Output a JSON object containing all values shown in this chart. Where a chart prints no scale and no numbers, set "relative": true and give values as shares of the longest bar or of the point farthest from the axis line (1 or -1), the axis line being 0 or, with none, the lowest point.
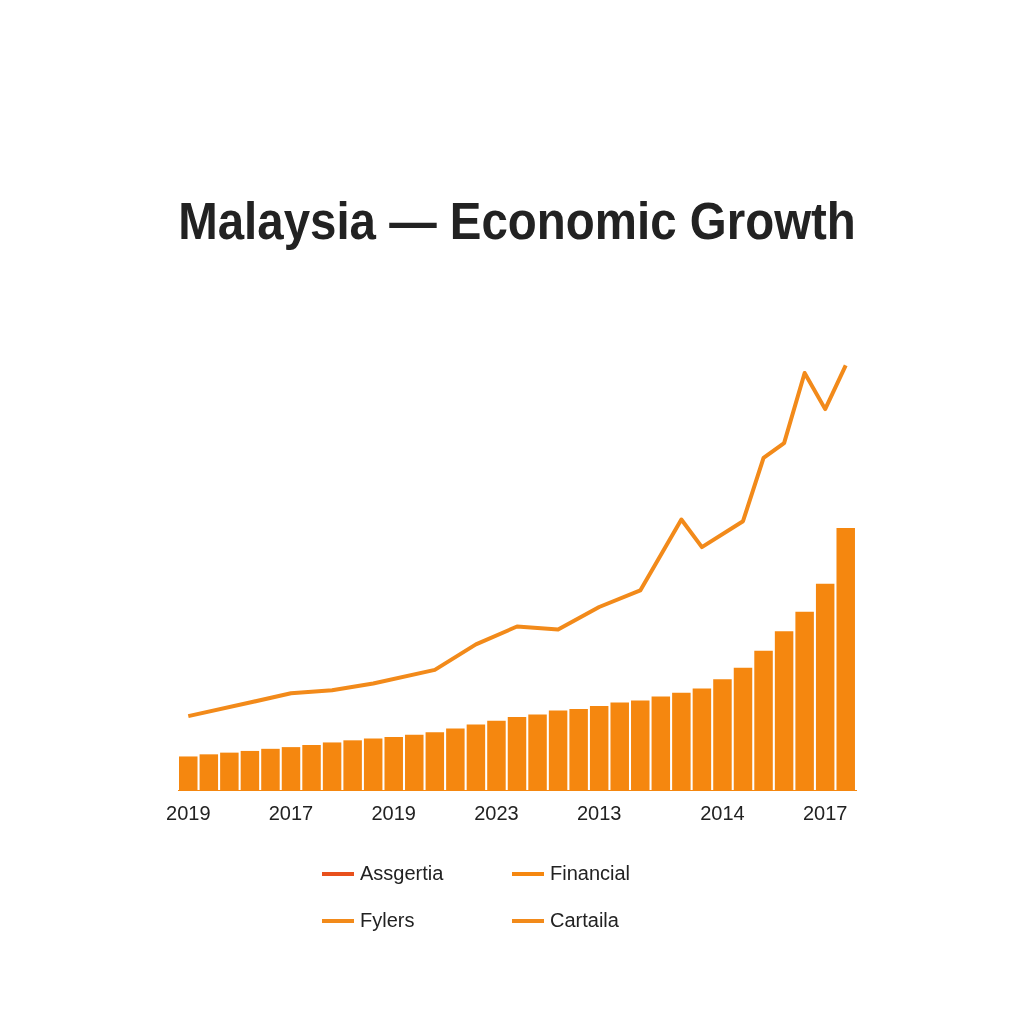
{
  "chart_data": {
    "type": "bar",
    "title": "Malaysia — Economic Growth",
    "relative": true,
    "categories": [
      "2019",
      null,
      null,
      null,
      null,
      "2017",
      null,
      null,
      null,
      null,
      "2019",
      null,
      null,
      null,
      null,
      "2023",
      null,
      null,
      null,
      null,
      "2013",
      null,
      null,
      null,
      null,
      null,
      "2014",
      null,
      null,
      null,
      null,
      "2017",
      null
    ],
    "series": [
      {
        "name": "Assgertia",
        "type": "line",
        "color": "#e8501c",
        "values": [
          null,
          null,
          null,
          null,
          null,
          null,
          null,
          null,
          null,
          null,
          null,
          null,
          null,
          null,
          null,
          null,
          null,
          null,
          null,
          null,
          null,
          null,
          null,
          null,
          null,
          null,
          null,
          null,
          null,
          null,
          null,
          null,
          null
        ]
      },
      {
        "name": "Financial",
        "color": "#f5870f",
        "values": [
          0.079,
          0.084,
          0.088,
          0.092,
          0.097,
          0.101,
          0.106,
          0.112,
          0.117,
          0.121,
          0.125,
          0.13,
          0.136,
          0.145,
          0.154,
          0.163,
          0.172,
          0.178,
          0.187,
          0.191,
          0.198,
          0.206,
          0.211,
          0.22,
          0.229,
          0.239,
          0.261,
          0.288,
          0.328,
          0.374,
          0.42,
          0.486,
          0.617
        ]
      },
      {
        "name": "Fylers",
        "type": "line",
        "color": "#f28a1a",
        "values": [
          0.174,
          null,
          null,
          0.206,
          null,
          0.228,
          null,
          0.235,
          null,
          0.251,
          null,
          null,
          0.283,
          null,
          0.343,
          null,
          0.385,
          null,
          0.378,
          null,
          0.431,
          null,
          0.47,
          null,
          0.637,
          0.572,
          null,
          0.633,
          0.782,
          0.817,
          0.982,
          0.897,
          1
        ]
      },
      {
        "name": "Cartaila",
        "type": "line",
        "color": "#f28a1a",
        "values": [
          null,
          null,
          null,
          null,
          null,
          null,
          null,
          null,
          null,
          null,
          null,
          null,
          null,
          null,
          null,
          null,
          null,
          null,
          null,
          null,
          null,
          null,
          null,
          null,
          null,
          null,
          null,
          null,
          null,
          null,
          null,
          null,
          null
        ]
      }
    ],
    "grid": false,
    "legend": "bottom"
  }
}
